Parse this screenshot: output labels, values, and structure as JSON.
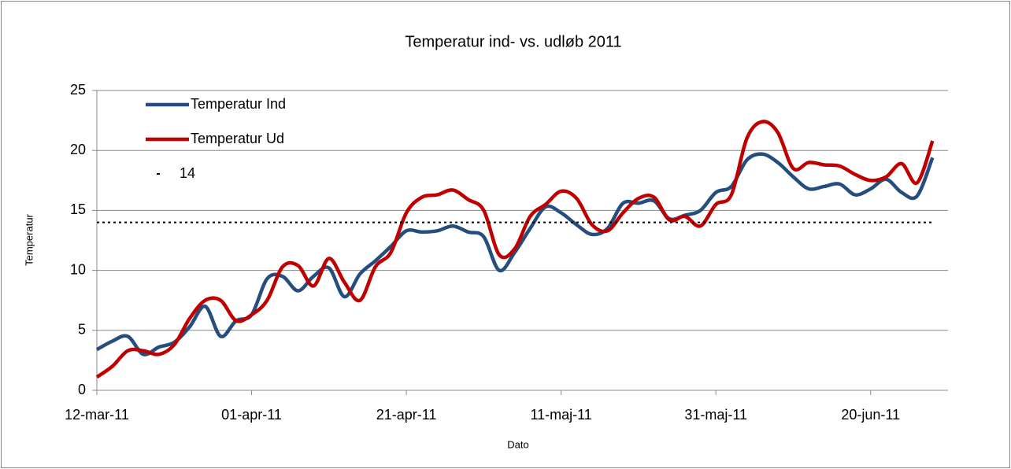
{
  "chart_data": {
    "type": "line",
    "title": "Temperatur ind- vs. udløb 2011",
    "x_label": "Dato",
    "y_label": "Temperatur",
    "x": [
      "2011-03-12",
      "2011-03-14",
      "2011-03-16",
      "2011-03-18",
      "2011-03-20",
      "2011-03-22",
      "2011-03-24",
      "2011-03-26",
      "2011-03-28",
      "2011-03-30",
      "2011-04-01",
      "2011-04-03",
      "2011-04-05",
      "2011-04-07",
      "2011-04-09",
      "2011-04-11",
      "2011-04-13",
      "2011-04-15",
      "2011-04-17",
      "2011-04-19",
      "2011-04-21",
      "2011-04-23",
      "2011-04-25",
      "2011-04-27",
      "2011-04-29",
      "2011-05-01",
      "2011-05-03",
      "2011-05-05",
      "2011-05-07",
      "2011-05-09",
      "2011-05-11",
      "2011-05-13",
      "2011-05-15",
      "2011-05-17",
      "2011-05-19",
      "2011-05-21",
      "2011-05-23",
      "2011-05-25",
      "2011-05-27",
      "2011-05-29",
      "2011-05-31",
      "2011-06-02",
      "2011-06-04",
      "2011-06-06",
      "2011-06-08",
      "2011-06-10",
      "2011-06-12",
      "2011-06-14",
      "2011-06-16",
      "2011-06-18",
      "2011-06-20",
      "2011-06-22",
      "2011-06-24",
      "2011-06-26",
      "2011-06-28"
    ],
    "series": [
      {
        "name": "Temperatur Ind",
        "color": "#254d7e",
        "values": [
          3.4,
          4.1,
          4.5,
          3.0,
          3.6,
          4.0,
          5.3,
          7.0,
          4.5,
          5.8,
          6.3,
          9.3,
          9.5,
          8.3,
          9.5,
          10.2,
          7.8,
          9.7,
          10.8,
          12.0,
          13.3,
          13.2,
          13.3,
          13.7,
          13.2,
          12.8,
          10.0,
          11.5,
          13.5,
          15.3,
          14.8,
          13.8,
          13.0,
          13.5,
          15.6,
          15.6,
          15.8,
          14.3,
          14.6,
          15.0,
          16.5,
          17.0,
          19.2,
          19.7,
          19.0,
          17.8,
          16.8,
          17.0,
          17.2,
          16.3,
          16.8,
          17.6,
          16.5,
          16.2,
          19.4
        ]
      },
      {
        "name": "Temperatur Ud",
        "color": "#c00000",
        "values": [
          1.1,
          2.0,
          3.3,
          3.3,
          3.0,
          3.8,
          6.0,
          7.5,
          7.5,
          5.8,
          6.3,
          7.5,
          10.3,
          10.4,
          8.7,
          11.0,
          9.0,
          7.5,
          10.3,
          11.5,
          14.8,
          16.1,
          16.3,
          16.7,
          15.9,
          15.0,
          11.3,
          11.8,
          14.5,
          15.5,
          16.6,
          16.0,
          13.8,
          13.3,
          14.8,
          16.0,
          16.1,
          14.2,
          14.5,
          13.7,
          15.5,
          16.3,
          21.0,
          22.4,
          21.5,
          18.5,
          19.0,
          18.8,
          18.7,
          18.0,
          17.5,
          17.8,
          18.9,
          17.3,
          20.8
        ]
      },
      {
        "name": "14",
        "color": "#000000",
        "dashed": true,
        "values": [
          14,
          14,
          14,
          14,
          14,
          14,
          14,
          14,
          14,
          14,
          14,
          14,
          14,
          14,
          14,
          14,
          14,
          14,
          14,
          14,
          14,
          14,
          14,
          14,
          14,
          14,
          14,
          14,
          14,
          14,
          14,
          14,
          14,
          14,
          14,
          14,
          14,
          14,
          14,
          14,
          14,
          14,
          14,
          14,
          14,
          14,
          14,
          14,
          14,
          14,
          14,
          14,
          14,
          14,
          14
        ]
      }
    ],
    "xlim": [
      "2011-03-12",
      "2011-06-30"
    ],
    "xticks": [
      {
        "value": "2011-03-12",
        "label": "12-mar-11"
      },
      {
        "value": "2011-04-01",
        "label": "01-apr-11"
      },
      {
        "value": "2011-04-21",
        "label": "21-apr-11"
      },
      {
        "value": "2011-05-11",
        "label": "11-maj-11"
      },
      {
        "value": "2011-05-31",
        "label": "31-maj-11"
      },
      {
        "value": "2011-06-20",
        "label": "20-jun-11"
      }
    ],
    "ylim": [
      0,
      25
    ],
    "yticks": [
      0,
      5,
      10,
      15,
      20,
      25
    ],
    "grid": true,
    "legend": "top-left"
  }
}
